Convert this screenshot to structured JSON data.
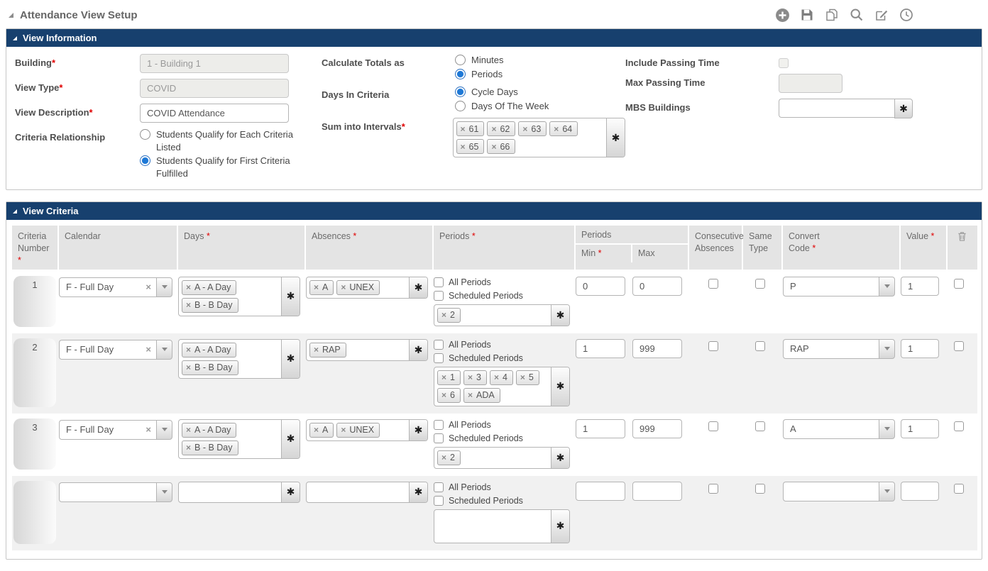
{
  "ui": {
    "required_marker": "*"
  },
  "page": {
    "title": "Attendance View Setup"
  },
  "toolbar": {
    "buttons": [
      "add",
      "save",
      "copy",
      "search",
      "edit",
      "history"
    ]
  },
  "view_information": {
    "header": "View Information",
    "building": {
      "label": "Building",
      "required": true,
      "value": "1 - Building 1",
      "disabled": true
    },
    "view_type": {
      "label": "View Type",
      "required": true,
      "value": "COVID",
      "disabled": true
    },
    "view_description": {
      "label": "View Description",
      "required": true,
      "value": "COVID Attendance"
    },
    "criteria_relationship": {
      "label": "Criteria Relationship",
      "options": [
        {
          "label": "Students Qualify for Each Criteria Listed",
          "selected": false
        },
        {
          "label": "Students Qualify for First Criteria Fulfilled",
          "selected": true
        }
      ]
    },
    "calculate_totals_as": {
      "label": "Calculate Totals as",
      "options": [
        {
          "label": "Minutes",
          "selected": false
        },
        {
          "label": "Periods",
          "selected": true
        }
      ]
    },
    "days_in_criteria": {
      "label": "Days In Criteria",
      "options": [
        {
          "label": "Cycle Days",
          "selected": true
        },
        {
          "label": "Days Of The Week",
          "selected": false
        }
      ]
    },
    "sum_into_intervals": {
      "label": "Sum into Intervals",
      "required": true,
      "tags": [
        "61",
        "62",
        "63",
        "64",
        "65",
        "66"
      ]
    },
    "include_passing_time": {
      "label": "Include Passing Time",
      "checked": false,
      "disabled": true
    },
    "max_passing_time": {
      "label": "Max Passing Time",
      "value": "",
      "disabled": true
    },
    "mbs_buildings": {
      "label": "MBS Buildings",
      "value": ""
    }
  },
  "view_criteria": {
    "header": "View Criteria",
    "columns": {
      "criteria_number": "Criteria Number",
      "calendar": "Calendar",
      "days": "Days",
      "absences": "Absences",
      "periods": "Periods",
      "periods_group": "Periods",
      "min": "Min",
      "max": "Max",
      "consecutive_absences": "Consecutive Absences",
      "same_type": "Same Type",
      "convert_code": "Convert Code",
      "value": "Value"
    },
    "periods_labels": {
      "all": "All Periods",
      "scheduled": "Scheduled Periods"
    },
    "rows": [
      {
        "number": "1",
        "calendar": "F - Full Day",
        "days": [
          "A - A Day",
          "B - B Day"
        ],
        "absences": [
          "A",
          "UNEX"
        ],
        "all_periods": false,
        "scheduled_periods": false,
        "periods": [
          "2"
        ],
        "min": "0",
        "max": "0",
        "consecutive_absences": false,
        "same_type": false,
        "convert_code": "P",
        "value": "1",
        "delete": false
      },
      {
        "number": "2",
        "calendar": "F - Full Day",
        "days": [
          "A - A Day",
          "B - B Day"
        ],
        "absences": [
          "RAP"
        ],
        "all_periods": false,
        "scheduled_periods": false,
        "periods": [
          "1",
          "3",
          "4",
          "5",
          "6",
          "ADA"
        ],
        "min": "1",
        "max": "999",
        "consecutive_absences": false,
        "same_type": false,
        "convert_code": "RAP",
        "value": "1",
        "delete": false
      },
      {
        "number": "3",
        "calendar": "F - Full Day",
        "days": [
          "A - A Day",
          "B - B Day"
        ],
        "absences": [
          "A",
          "UNEX"
        ],
        "all_periods": false,
        "scheduled_periods": false,
        "periods": [
          "2"
        ],
        "min": "1",
        "max": "999",
        "consecutive_absences": false,
        "same_type": false,
        "convert_code": "A",
        "value": "1",
        "delete": false
      },
      {
        "number": "",
        "calendar": "",
        "days": [],
        "absences": [],
        "all_periods": false,
        "scheduled_periods": false,
        "periods": [],
        "min": "",
        "max": "",
        "consecutive_absences": false,
        "same_type": false,
        "convert_code": "",
        "value": "",
        "delete": false,
        "empty": true
      }
    ]
  }
}
